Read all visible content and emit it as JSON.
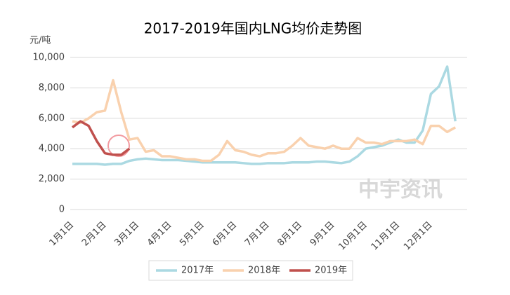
{
  "chart_data": {
    "type": "line",
    "title": "2017-2019年国内LNG均价走势图",
    "y_label": "元/吨",
    "watermark": "中宇资讯",
    "categories": [
      "1月1日",
      null,
      null,
      null,
      "2月1日",
      null,
      null,
      null,
      "3月1日",
      null,
      null,
      null,
      "4月1日",
      null,
      null,
      null,
      "5月1日",
      null,
      null,
      null,
      "6月1日",
      null,
      null,
      null,
      "7月1日",
      null,
      null,
      null,
      "8月1日",
      null,
      null,
      null,
      "9月1日",
      null,
      null,
      null,
      "10月1日",
      null,
      null,
      null,
      "11月1日",
      null,
      null,
      null,
      "12月1日",
      null,
      null,
      null
    ],
    "series": [
      {
        "name": "2017年",
        "color": "#abd9e2",
        "values": [
          3000,
          3000,
          3000,
          3000,
          2950,
          3000,
          3000,
          3200,
          3300,
          3350,
          3300,
          3250,
          3250,
          3250,
          3200,
          3150,
          3100,
          3100,
          3100,
          3100,
          3100,
          3050,
          3000,
          3000,
          3050,
          3050,
          3050,
          3100,
          3100,
          3100,
          3150,
          3150,
          3100,
          3050,
          3150,
          3500,
          4000,
          4100,
          4200,
          4400,
          4600,
          4400,
          4400,
          5200,
          7600,
          8100,
          9400,
          5800
        ]
      },
      {
        "name": "2018年",
        "color": "#f9d1ae",
        "values": [
          5800,
          5700,
          6000,
          6400,
          6500,
          8500,
          6400,
          4600,
          4700,
          3800,
          3900,
          3500,
          3500,
          3400,
          3300,
          3300,
          3200,
          3200,
          3600,
          4500,
          3900,
          3800,
          3600,
          3500,
          3700,
          3700,
          3800,
          4200,
          4700,
          4200,
          4100,
          4000,
          4200,
          4000,
          4000,
          4700,
          4400,
          4400,
          4300,
          4500,
          4500,
          4500,
          4600,
          4300,
          5500,
          5500,
          5100,
          5400
        ]
      },
      {
        "name": "2019年",
        "color": "#c0504d",
        "values": [
          5400,
          5800,
          5500,
          4500,
          3700,
          3600,
          3600,
          4000,
          null,
          null,
          null,
          null,
          null,
          null,
          null,
          null,
          null,
          null,
          null,
          null,
          null,
          null,
          null,
          null,
          null,
          null,
          null,
          null,
          null,
          null,
          null,
          null,
          null,
          null,
          null,
          null,
          null,
          null,
          null,
          null,
          null,
          null,
          null,
          null,
          null,
          null,
          null,
          null
        ]
      }
    ],
    "ylim": [
      0,
      10000
    ],
    "yticks": [
      0,
      {
        "value": 2000,
        "label": "2,000"
      },
      {
        "value": 4000,
        "label": "4,000"
      },
      {
        "value": 6000,
        "label": "6,000"
      },
      {
        "value": 8000,
        "label": "8,000"
      },
      {
        "value": 10000,
        "label": "10,000"
      }
    ],
    "grid": true,
    "legend": "bottom"
  }
}
